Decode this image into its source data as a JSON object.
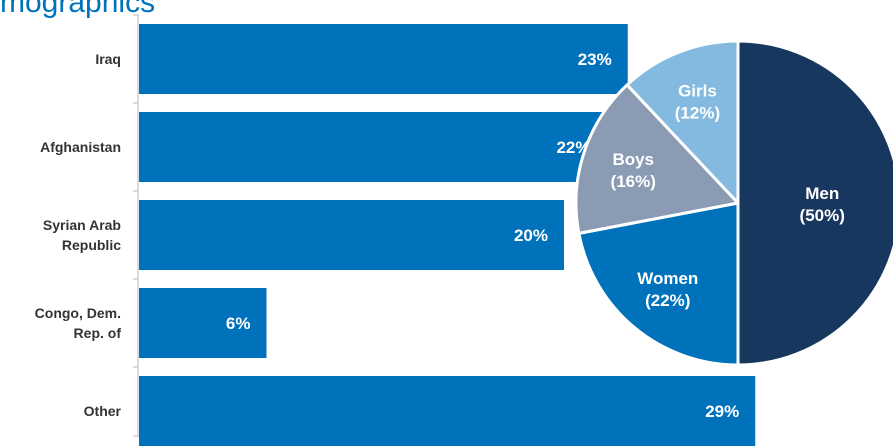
{
  "title_fragment": "mographics",
  "chart_data": [
    {
      "type": "bar",
      "orientation": "horizontal",
      "categories": [
        "Iraq",
        "Afghanistan",
        "Syrian Arab Republic",
        "Congo, Dem. Rep. of",
        "Other"
      ],
      "category_lines": [
        [
          "Iraq"
        ],
        [
          "Afghanistan"
        ],
        [
          "Syrian Arab",
          "Republic"
        ],
        [
          "Congo, Dem.",
          "Rep. of"
        ],
        [
          "Other"
        ]
      ],
      "values": [
        23,
        22,
        20,
        6,
        29
      ],
      "value_labels": [
        "23%",
        "22%",
        "20%",
        "6%",
        "29%"
      ],
      "unit": "%",
      "xlim": [
        0,
        32
      ],
      "grid": false,
      "colors": {
        "bar": "#0072bc",
        "bar_label": "#ffffff",
        "axis": "#bbbbbb"
      }
    },
    {
      "type": "pie",
      "slices": [
        {
          "label": "Men",
          "pct_label": "(50%)",
          "value": 50,
          "color": "#18375f"
        },
        {
          "label": "Women",
          "pct_label": "(22%)",
          "value": 22,
          "color": "#0072bc"
        },
        {
          "label": "Boys",
          "pct_label": "(16%)",
          "value": 16,
          "color": "#8a9bb3"
        },
        {
          "label": "Girls",
          "pct_label": "(12%)",
          "value": 12,
          "color": "#84b9e0"
        }
      ],
      "start": "top",
      "direction": "clockwise",
      "slice_border": "#ffffff"
    }
  ]
}
